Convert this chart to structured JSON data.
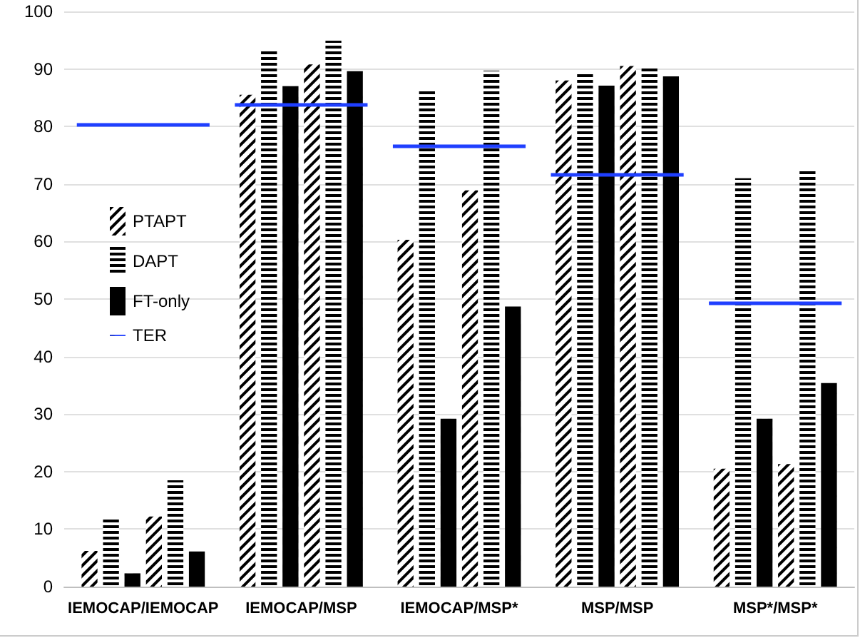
{
  "chart_data": {
    "type": "bar",
    "categories": [
      "IEMOCAP/IEMOCAP",
      "IEMOCAP/MSP",
      "IEMOCAP/MSP*",
      "MSP/MSP",
      "MSP*/MSP*"
    ],
    "series": [
      {
        "name": "PTAPT",
        "color": "#000000",
        "values": [
          6.2,
          85.5,
          60.3,
          88,
          20.5
        ]
      },
      {
        "name": "DAPT",
        "color": "#000000",
        "values": [
          12,
          93.3,
          86.2,
          89.3,
          71
        ]
      },
      {
        "name": "FT-only",
        "color": "#000000",
        "values": [
          2.3,
          87,
          29.2,
          87.1,
          29.2
        ]
      },
      {
        "color": "#000000",
        "values": [
          12.2,
          90.8,
          68.9,
          90.5,
          21.3
        ]
      },
      {
        "color": "#000000",
        "values": [
          18.5,
          94.9,
          89.7,
          90.2,
          72.5
        ]
      },
      {
        "color": "#000000",
        "values": [
          6.1,
          89.6,
          48.7,
          88.7,
          35.4
        ]
      }
    ],
    "ref_lines": [
      {
        "axis": "y",
        "value": 80.3,
        "label": "TER",
        "color": "#1f3fff"
      },
      {
        "axis": "y",
        "value": 83.7,
        "color": "#1f3fff"
      },
      {
        "axis": "y",
        "value": 76.5,
        "color": "#1f3fff"
      },
      {
        "axis": "y",
        "value": 71.6,
        "color": "#1f3fff"
      },
      {
        "axis": "y",
        "value": 49.3,
        "color": "#1f3fff"
      }
    ],
    "ylim": [
      0,
      100
    ],
    "yticks": [
      0,
      10,
      20,
      30,
      40,
      50,
      60,
      70,
      80,
      90,
      100
    ],
    "grid": "y",
    "legend": "left"
  }
}
